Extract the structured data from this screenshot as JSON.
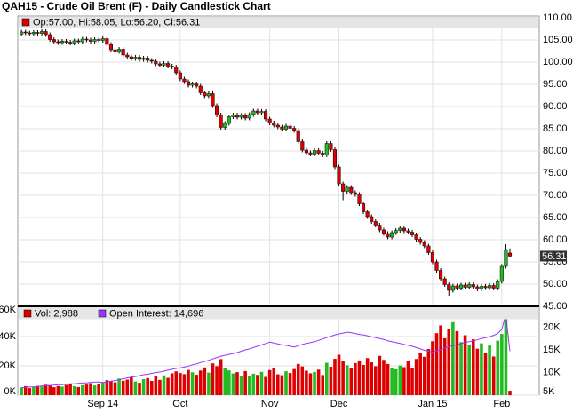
{
  "chart_data": [
    {
      "type": "candlestick",
      "title": "QAH15 - Crude Oil Brent (F) - Daily Candlestick Chart",
      "ohlc_label": "Op:57.00, Hi:58.05, Lo:56.20, Cl:56.31",
      "last_label": "56.31",
      "colors": {
        "up": "#22bb22",
        "down": "#dd0000"
      },
      "xlim": [
        -0.9,
        127.2
      ],
      "ylim": [
        45,
        110
      ],
      "yticks": [
        {
          "value": 45,
          "label": "45.00"
        },
        {
          "value": 50,
          "label": "50.00"
        },
        {
          "value": 55,
          "label": "55.00"
        },
        {
          "value": 60,
          "label": "60.00"
        },
        {
          "value": 65,
          "label": "65.00"
        },
        {
          "value": 70,
          "label": "70.00"
        },
        {
          "value": 75,
          "label": "75.00"
        },
        {
          "value": 80,
          "label": "80.00"
        },
        {
          "value": 85,
          "label": "85.00"
        },
        {
          "value": 90,
          "label": "90.00"
        },
        {
          "value": 95,
          "label": "95.00"
        },
        {
          "value": 100,
          "label": "100.00"
        },
        {
          "value": 105,
          "label": "105.00"
        },
        {
          "value": 110,
          "label": "110.00"
        }
      ],
      "open": [
        106.3,
        106.8,
        106.6,
        106.4,
        106.7,
        106.5,
        106.9,
        106.2,
        105.1,
        104.6,
        104.4,
        104.7,
        104.5,
        104.3,
        104.8,
        104.6,
        105.2,
        105.0,
        104.7,
        105.1,
        104.9,
        105.3,
        104.0,
        102.8,
        102.4,
        102.9,
        101.6,
        101.2,
        100.8,
        101.1,
        100.6,
        100.9,
        100.4,
        100.2,
        99.6,
        99.3,
        99.7,
        99.1,
        98.9,
        97.6,
        96.2,
        95.6,
        94.8,
        95.1,
        94.6,
        93.1,
        92.4,
        92.9,
        90.2,
        88.1,
        85.3,
        86.2,
        87.7,
        88.1,
        87.6,
        88.0,
        87.4,
        88.2,
        89.0,
        88.6,
        88.9,
        87.2,
        86.3,
        85.8,
        85.4,
        84.9,
        85.6,
        85.1,
        84.6,
        82.1,
        80.2,
        79.6,
        79.3,
        80.1,
        79.5,
        79.1,
        81.7,
        80.3,
        76.4,
        72.6,
        70.9,
        71.8,
        70.6,
        70.2,
        68.1,
        66.3,
        65.2,
        64.1,
        63.3,
        62.2,
        61.4,
        60.6,
        61.6,
        62.1,
        62.6,
        62.0,
        61.7,
        61.1,
        60.1,
        59.4,
        58.6,
        57.1,
        55.0,
        53.1,
        51.2,
        49.9,
        48.6,
        49.6,
        49.1,
        49.8,
        49.3,
        49.9,
        49.4,
        48.9,
        49.5,
        49.2,
        49.7,
        49.1,
        50.6,
        54.0,
        57.0
      ],
      "high": [
        107.3,
        107.3,
        107.1,
        107.2,
        107.2,
        107.4,
        107.4,
        106.7,
        105.6,
        105.1,
        105.2,
        105.2,
        105.0,
        105.3,
        105.3,
        105.7,
        105.7,
        105.5,
        105.6,
        105.6,
        105.8,
        105.8,
        104.5,
        103.3,
        103.4,
        103.4,
        102.1,
        101.7,
        101.6,
        101.6,
        101.4,
        101.4,
        100.9,
        100.7,
        100.1,
        100.2,
        100.2,
        99.6,
        99.4,
        98.1,
        96.7,
        96.1,
        95.6,
        95.6,
        95.1,
        93.6,
        93.4,
        93.4,
        90.7,
        88.6,
        86.7,
        88.2,
        88.6,
        88.6,
        88.5,
        88.5,
        88.7,
        89.5,
        89.5,
        89.4,
        89.4,
        87.7,
        86.8,
        86.3,
        85.9,
        86.1,
        86.1,
        85.6,
        85.1,
        82.6,
        80.7,
        80.1,
        80.6,
        80.6,
        80.0,
        82.2,
        82.2,
        80.8,
        76.9,
        73.1,
        72.3,
        72.3,
        71.1,
        70.7,
        68.6,
        66.8,
        65.7,
        64.6,
        63.8,
        62.7,
        61.9,
        62.1,
        62.6,
        63.1,
        63.1,
        62.5,
        62.2,
        61.6,
        60.6,
        59.9,
        59.1,
        57.6,
        55.5,
        53.6,
        51.7,
        50.4,
        50.1,
        50.1,
        50.3,
        50.3,
        50.4,
        50.4,
        49.9,
        50.0,
        50.0,
        50.2,
        50.2,
        51.1,
        54.5,
        59.0,
        58.05
      ],
      "low": [
        105.8,
        106.1,
        105.9,
        105.9,
        106.0,
        106.0,
        105.7,
        104.6,
        104.1,
        103.9,
        103.9,
        104.0,
        103.8,
        103.8,
        104.1,
        104.1,
        104.5,
        104.2,
        104.2,
        104.4,
        104.4,
        103.5,
        102.3,
        101.9,
        101.9,
        101.1,
        100.7,
        100.3,
        100.3,
        100.1,
        100.1,
        99.9,
        99.7,
        99.1,
        98.8,
        98.8,
        98.6,
        98.4,
        97.1,
        95.7,
        95.1,
        94.3,
        94.3,
        94.1,
        92.6,
        91.9,
        91.9,
        89.7,
        87.6,
        84.8,
        84.8,
        85.7,
        87.2,
        87.1,
        87.1,
        86.9,
        86.9,
        87.7,
        88.1,
        88.1,
        86.7,
        85.8,
        85.3,
        84.9,
        84.4,
        84.4,
        84.6,
        84.1,
        81.6,
        79.7,
        79.1,
        78.8,
        78.8,
        79.0,
        78.6,
        78.6,
        79.8,
        75.9,
        72.1,
        68.9,
        70.4,
        70.1,
        69.7,
        67.6,
        65.8,
        64.7,
        63.6,
        62.8,
        61.7,
        60.9,
        60.1,
        60.1,
        61.1,
        61.6,
        61.5,
        61.2,
        60.6,
        59.6,
        58.9,
        58.1,
        56.6,
        54.5,
        52.6,
        50.7,
        49.4,
        47.4,
        48.1,
        48.6,
        48.6,
        48.8,
        48.8,
        48.9,
        48.4,
        48.4,
        48.7,
        48.7,
        48.6,
        48.6,
        50.1,
        53.5,
        56.2
      ],
      "close": [
        106.8,
        106.6,
        106.4,
        106.7,
        106.5,
        106.9,
        106.2,
        105.1,
        104.6,
        104.4,
        104.7,
        104.5,
        104.3,
        104.8,
        104.6,
        105.2,
        105.0,
        104.7,
        105.1,
        104.9,
        105.3,
        104.0,
        102.8,
        102.4,
        102.9,
        101.6,
        101.2,
        100.8,
        101.1,
        100.6,
        100.9,
        100.4,
        100.2,
        99.6,
        99.3,
        99.7,
        99.1,
        98.9,
        97.6,
        96.2,
        95.6,
        94.8,
        95.1,
        94.6,
        93.1,
        92.4,
        92.9,
        90.2,
        88.1,
        85.3,
        86.2,
        87.7,
        88.1,
        87.6,
        88.0,
        87.4,
        88.2,
        89.0,
        88.6,
        88.9,
        87.2,
        86.3,
        85.8,
        85.4,
        84.9,
        85.6,
        85.1,
        84.6,
        82.1,
        80.2,
        79.6,
        79.3,
        80.1,
        79.5,
        79.1,
        81.7,
        80.3,
        76.4,
        72.6,
        70.9,
        71.8,
        70.6,
        70.2,
        68.1,
        66.3,
        65.2,
        64.1,
        63.3,
        62.2,
        61.4,
        60.6,
        61.6,
        62.1,
        62.6,
        62.0,
        61.7,
        61.1,
        60.1,
        59.4,
        58.6,
        57.1,
        55.0,
        53.1,
        51.2,
        49.9,
        48.6,
        49.6,
        49.1,
        49.8,
        49.3,
        49.9,
        49.4,
        48.9,
        49.5,
        49.2,
        49.7,
        49.1,
        50.6,
        54.0,
        57.8,
        56.31
      ]
    },
    {
      "type": "bar",
      "xlim": [
        -0.9,
        127.2
      ],
      "xticks": [
        {
          "value": 20,
          "label": "Sep 14"
        },
        {
          "value": 39,
          "label": "Oct"
        },
        {
          "value": 61,
          "label": "Nov"
        },
        {
          "value": 78,
          "label": "Dec"
        },
        {
          "value": 101,
          "label": "Jan 15"
        },
        {
          "value": 118,
          "label": "Feb"
        }
      ],
      "ylim": [
        0,
        60000
      ],
      "yticks": [
        {
          "value": 0,
          "label": "0K"
        },
        {
          "value": 20000,
          "label": "20K"
        },
        {
          "value": 40000,
          "label": "40K"
        },
        {
          "value": 60000,
          "label": "60K"
        }
      ],
      "y2lim": [
        5000,
        24400
      ],
      "y2ticks": [
        {
          "value": 5000,
          "label": "5K"
        },
        {
          "value": 10000,
          "label": "10K"
        },
        {
          "value": 15000,
          "label": "15K"
        },
        {
          "value": 20000,
          "label": "20K"
        }
      ],
      "series": [
        {
          "name": "Vol: 2,988",
          "color": "#dd0000",
          "values": [
            5200,
            6100,
            4800,
            5600,
            6300,
            5900,
            7100,
            6800,
            5400,
            6200,
            5800,
            6900,
            7400,
            6100,
            5500,
            6700,
            7200,
            8100,
            6600,
            7900,
            8800,
            10200,
            9400,
            8700,
            11300,
            9800,
            10600,
            12100,
            9300,
            8400,
            10900,
            11600,
            9700,
            12800,
            10400,
            13500,
            11800,
            14900,
            16200,
            15100,
            14300,
            17200,
            15600,
            13900,
            16800,
            18900,
            15400,
            21700,
            19800,
            24600,
            18200,
            16900,
            14800,
            15700,
            13200,
            16400,
            12900,
            14600,
            13800,
            15900,
            12400,
            17100,
            18600,
            14200,
            13600,
            16300,
            15100,
            17800,
            21300,
            19600,
            16700,
            14900,
            15800,
            17400,
            13700,
            22100,
            19400,
            24800,
            27600,
            23100,
            20400,
            18300,
            21900,
            23700,
            20600,
            25300,
            22400,
            19700,
            26800,
            24100,
            21300,
            18800,
            17600,
            20200,
            19100,
            23400,
            18500,
            24700,
            28900,
            26200,
            31500,
            36800,
            42300,
            47600,
            38900,
            45200,
            49800,
            43700,
            36200,
            40900,
            34600,
            38100,
            31700,
            35400,
            28700,
            33900,
            26400,
            37200,
            41800,
            56300,
            2988
          ]
        },
        {
          "name": "Open Interest: 14,696",
          "color": "#9933ff",
          "axis": "y2",
          "values": [
            6600,
            6700,
            6800,
            6800,
            6900,
            7000,
            7100,
            7100,
            7200,
            7300,
            7300,
            7400,
            7500,
            7500,
            7600,
            7700,
            7700,
            7800,
            7900,
            7900,
            7800,
            7900,
            8100,
            8200,
            8400,
            8600,
            8800,
            9000,
            9100,
            9300,
            9500,
            9600,
            9800,
            10000,
            10100,
            10300,
            10500,
            10700,
            10900,
            11000,
            11200,
            11400,
            11700,
            11900,
            12200,
            12400,
            12700,
            13000,
            13300,
            13600,
            13800,
            14000,
            14200,
            14400,
            14700,
            15000,
            15200,
            15500,
            15800,
            16100,
            16400,
            16700,
            16500,
            16300,
            16100,
            16000,
            15800,
            15600,
            15900,
            16200,
            16400,
            16600,
            16800,
            17100,
            17400,
            17700,
            18000,
            18300,
            18500,
            18700,
            18900,
            18800,
            18600,
            18400,
            18300,
            18100,
            17900,
            17700,
            17500,
            17300,
            17000,
            16800,
            16600,
            16400,
            16200,
            16000,
            15800,
            15500,
            15200,
            14900,
            14700,
            14500,
            14800,
            15100,
            15400,
            15700,
            15900,
            16100,
            16400,
            16600,
            16800,
            17000,
            17200,
            17500,
            17700,
            17900,
            18200,
            18600,
            19500,
            22800,
            14696
          ]
        }
      ]
    }
  ]
}
